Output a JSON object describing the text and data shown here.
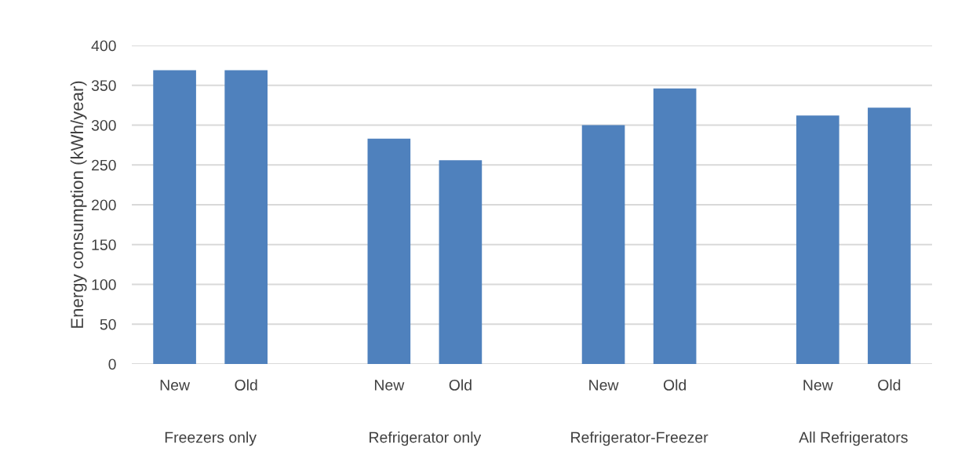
{
  "chart_data": {
    "type": "bar",
    "ylabel": "Energy consumption (kWh/year)",
    "categories": [
      "New",
      "Old",
      null,
      "New",
      "Old",
      null,
      "New",
      "Old",
      null,
      "New",
      "Old"
    ],
    "values": [
      369,
      369,
      null,
      283,
      256,
      null,
      300,
      346,
      null,
      312,
      322
    ],
    "color": "#4f81bd",
    "annotations": [
      "Freezers only",
      "Refrigerator only",
      "Refrigerator-Freezer",
      "All Refrigerators"
    ],
    "ylim": [
      0,
      400
    ],
    "yticks": [
      0,
      50,
      100,
      150,
      200,
      250,
      300,
      350,
      400
    ],
    "grid": "y",
    "legend": false
  }
}
